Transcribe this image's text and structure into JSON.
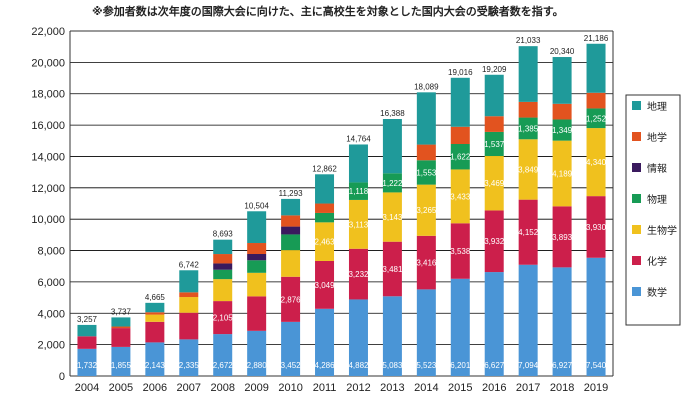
{
  "note": "※参加者数は次年度の国際大会に向けた、主に高校生を対象とした国内大会の受験者数を指す。",
  "chart_data": {
    "type": "bar",
    "stacked": true,
    "categories": [
      "2004",
      "2005",
      "2006",
      "2007",
      "2008",
      "2009",
      "2010",
      "2011",
      "2012",
      "2013",
      "2014",
      "2015",
      "2016",
      "2017",
      "2018",
      "2019"
    ],
    "totals": [
      3257,
      3737,
      4665,
      6742,
      8693,
      10504,
      11293,
      12862,
      14764,
      16388,
      18089,
      19016,
      19209,
      21033,
      20340,
      21186
    ],
    "ylim": [
      0,
      22000
    ],
    "yticks": [
      0,
      2000,
      4000,
      6000,
      8000,
      10000,
      12000,
      14000,
      16000,
      18000,
      20000,
      22000
    ],
    "ytick_labels": [
      "0",
      "2,000",
      "4,000",
      "6,000",
      "8,000",
      "10,000",
      "12,000",
      "14,000",
      "16,000",
      "18,000",
      "20,000",
      "22,000"
    ],
    "grid": true,
    "legend_position": "right",
    "series": [
      {
        "name": "数学",
        "color": "#4a95d6",
        "values": [
          1732,
          1855,
          2143,
          2335,
          2672,
          2880,
          3452,
          4286,
          4882,
          5083,
          5523,
          6201,
          6627,
          7094,
          6927,
          7540
        ]
      },
      {
        "name": "化学",
        "color": "#cc1f4b",
        "values": [
          800,
          1200,
          1313,
          1700,
          2105,
          2200,
          2876,
          3049,
          3232,
          3481,
          3416,
          3538,
          3932,
          4152,
          3893,
          3930
        ]
      },
      {
        "name": "生物学",
        "color": "#f0c11e",
        "values": [
          0,
          0,
          460,
          1000,
          1400,
          1500,
          1700,
          2463,
          3113,
          3143,
          3265,
          3433,
          3469,
          3849,
          4189,
          4340
        ]
      },
      {
        "name": "物理",
        "color": "#179b55",
        "values": [
          0,
          0,
          0,
          0,
          600,
          800,
          1000,
          600,
          1118,
          1222,
          1553,
          1622,
          1537,
          1385,
          1349,
          1252
        ]
      },
      {
        "name": "情報",
        "color": "#3a1a5e",
        "values": [
          0,
          0,
          0,
          0,
          400,
          400,
          500,
          0,
          0,
          0,
          0,
          0,
          0,
          0,
          0,
          0
        ]
      },
      {
        "name": "地学",
        "color": "#e2531f",
        "values": [
          0,
          100,
          150,
          300,
          600,
          700,
          715,
          600,
          0,
          0,
          1000,
          1100,
          1000,
          1000,
          1000,
          1000
        ]
      },
      {
        "name": "地理",
        "color": "#1f9a9a",
        "values": [
          725,
          582,
          599,
          1407,
          916,
          2024,
          1050,
          1864,
          2419,
          3459,
          3332,
          3122,
          2644,
          3553,
          2982,
          3124
        ]
      }
    ],
    "segment_labels": [
      [
        "1,732",
        "1,855",
        "2,143",
        "2,335",
        "2,672",
        "2,880",
        "3,452",
        "4,286",
        "4,882",
        "5,083",
        "5,523",
        "6,201",
        "6,627",
        "7,094",
        "6,927",
        "7,540"
      ],
      [
        "",
        "",
        "",
        "",
        "2,105",
        "",
        "2,876",
        "3,049",
        "3,232",
        "3,481",
        "3,416",
        "3,538",
        "3,932",
        "4,152",
        "3,893",
        "3,930"
      ],
      [
        "",
        "",
        "",
        "",
        "",
        "",
        "",
        "2,463",
        "3,113",
        "3,143",
        "3,265",
        "3,433",
        "3,469",
        "3,849",
        "4,189",
        "4,340"
      ],
      [
        "",
        "",
        "",
        "",
        "",
        "",
        "",
        "",
        "1,118",
        "1,222",
        "1,553",
        "1,622",
        "1,537",
        "1,385",
        "1,349",
        "1,252"
      ],
      [
        "",
        "",
        "",
        "",
        "",
        "",
        "",
        "",
        "",
        "",
        "",
        "",
        "",
        "",
        "",
        ""
      ],
      [
        "",
        "",
        "",
        "",
        "",
        "",
        "",
        "",
        "",
        "",
        "",
        "",
        "",
        "",
        "",
        ""
      ],
      [
        "",
        "",
        "",
        "",
        "",
        "",
        "",
        "",
        "",
        "",
        "",
        "",
        "",
        "",
        "",
        ""
      ]
    ]
  }
}
